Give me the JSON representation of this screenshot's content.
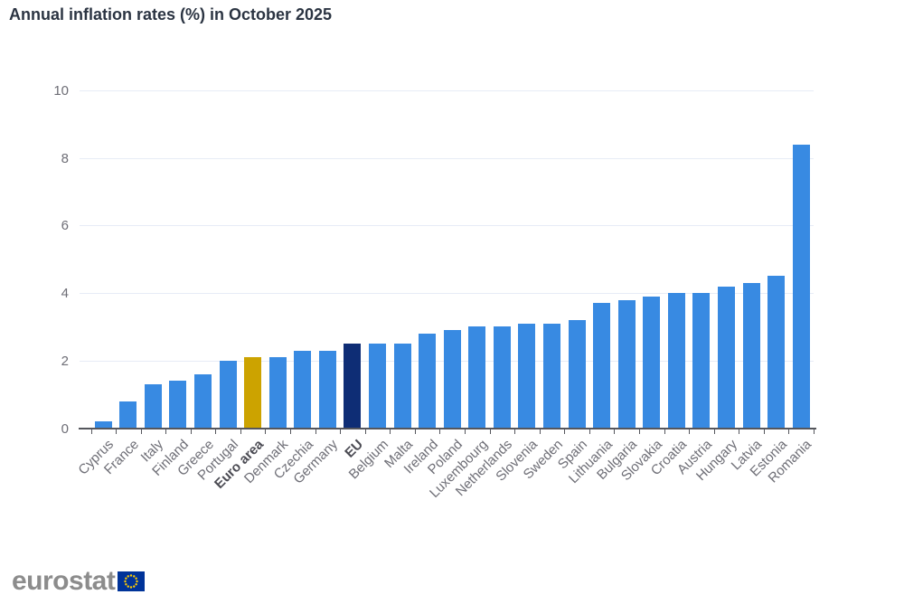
{
  "chart_data": {
    "type": "bar",
    "title": "Annual inflation rates (%) in October 2025",
    "categories": [
      "Cyprus",
      "France",
      "Italy",
      "Finland",
      "Greece",
      "Portugal",
      "Euro area",
      "Denmark",
      "Czechia",
      "Germany",
      "EU",
      "Belgium",
      "Malta",
      "Ireland",
      "Poland",
      "Luxembourg",
      "Netherlands",
      "Slovenia",
      "Sweden",
      "Spain",
      "Lithuania",
      "Bulgaria",
      "Slovakia",
      "Croatia",
      "Austria",
      "Hungary",
      "Latvia",
      "Estonia",
      "Romania"
    ],
    "values": [
      0.2,
      0.8,
      1.3,
      1.4,
      1.6,
      2.0,
      2.1,
      2.1,
      2.3,
      2.3,
      2.5,
      2.5,
      2.5,
      2.8,
      2.9,
      3.0,
      3.0,
      3.1,
      3.1,
      3.2,
      3.7,
      3.8,
      3.9,
      4.0,
      4.0,
      4.2,
      4.3,
      4.5,
      8.4
    ],
    "bold_categories": [
      "Euro area",
      "EU"
    ],
    "colors": {
      "default": "#388ae2",
      "Euro area": "#cca300",
      "EU": "#0e2d75"
    },
    "ylim": [
      0,
      10
    ],
    "yticks": [
      0,
      2,
      4,
      6,
      8,
      10
    ],
    "grid": true,
    "legend": false,
    "xlabel_rotation": -45,
    "xlabel": "",
    "ylabel": ""
  },
  "logo": {
    "text": "eurostat",
    "flag_bg": "#003399",
    "flag_star_color": "#ffcc00"
  }
}
